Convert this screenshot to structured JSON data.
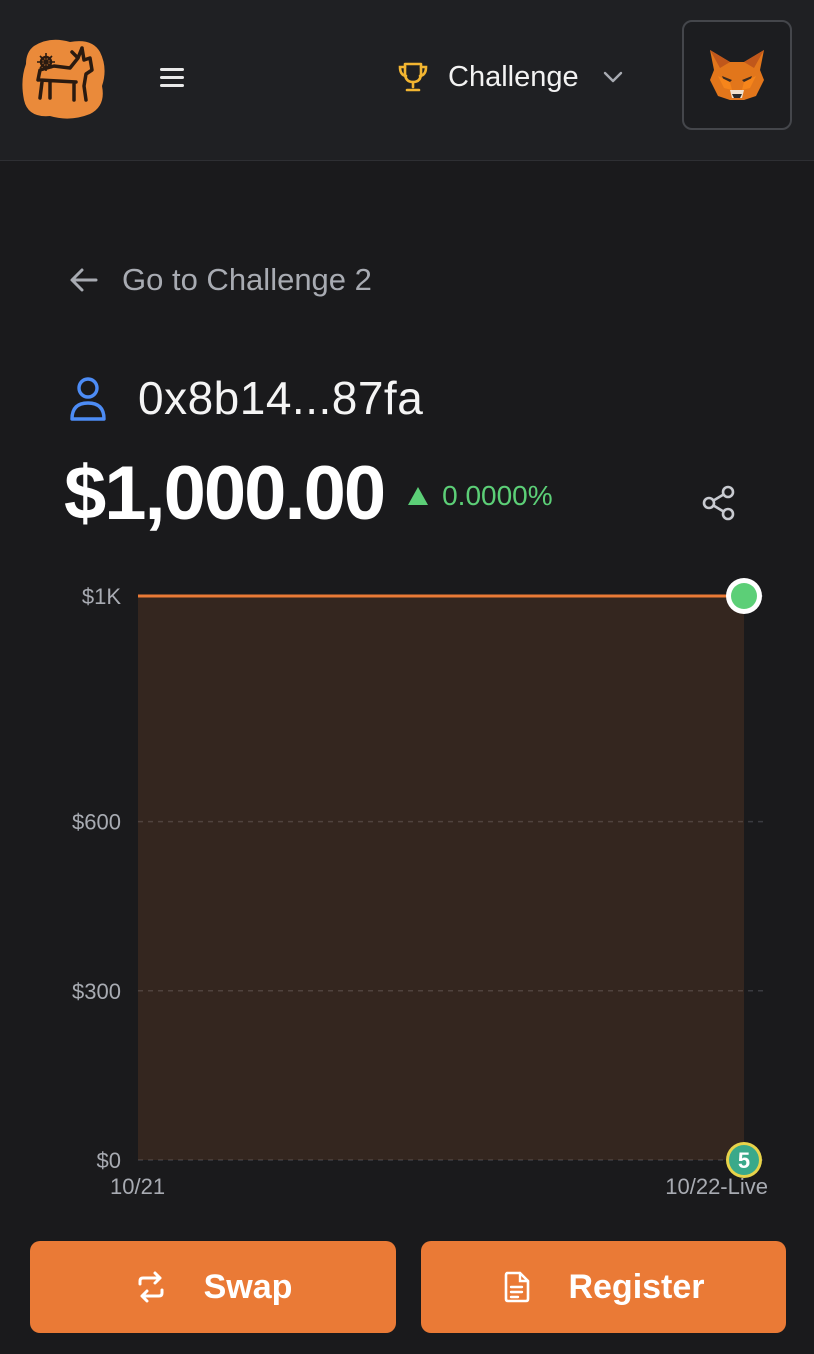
{
  "header": {
    "menu_icon": "hamburger-menu-icon",
    "challenge_label": "Challenge",
    "trophy_color": "#f2b531",
    "wallet_icon": "metamask-fox-icon"
  },
  "back_link": {
    "label": "Go to Challenge 2"
  },
  "account": {
    "address": "0x8b14...87fa",
    "balance": "$1,000.00",
    "change": "0.0000%"
  },
  "colors": {
    "accent": "#ea7a36",
    "up": "#5ccf77",
    "background": "#1a1a1c"
  },
  "chart_data": {
    "type": "area",
    "x": [
      "10/21",
      "10/22-Live"
    ],
    "series": [
      {
        "values": [
          1000,
          1000
        ]
      }
    ],
    "y_ticks": [
      "$1K",
      "$600",
      "$300",
      "$0"
    ],
    "x_ticks": [
      "10/21",
      "10/22-Live"
    ],
    "ylim": [
      0,
      1000
    ],
    "grid": true,
    "event_marker": {
      "x": "10/22-Live",
      "label": "5"
    }
  },
  "actions": {
    "swap_label": "Swap",
    "register_label": "Register"
  }
}
